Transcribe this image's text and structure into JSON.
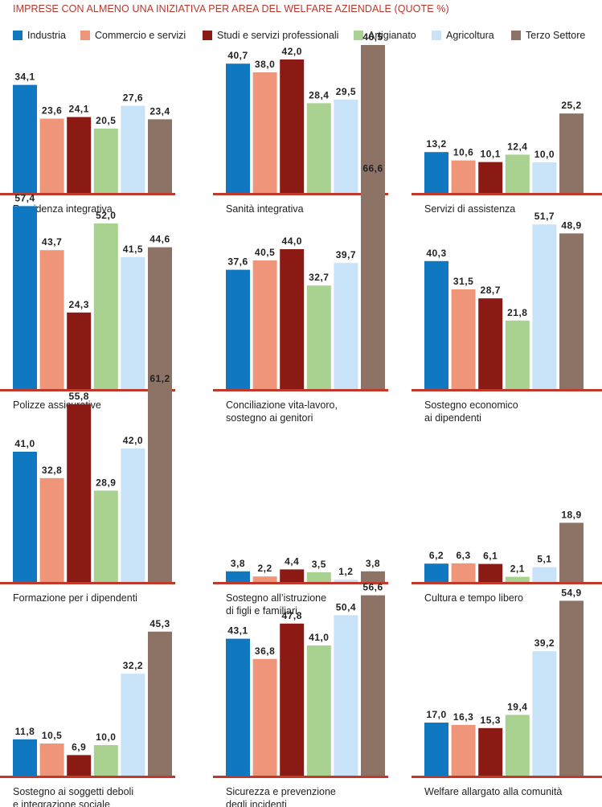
{
  "title": "IMPRESE CON ALMENO UNA INIZIATIVA PER AREA DEL WELFARE AZIENDALE (QUOTE %)",
  "colors": {
    "accent": "#c0392b",
    "baseline": "#c0392b",
    "series": [
      "#0f78c1",
      "#ef957a",
      "#8c1a14",
      "#a9d291",
      "#c8e2f7",
      "#8d7366"
    ]
  },
  "legend": [
    "Industria",
    "Commercio e servizi",
    "Studi e servizi professionali",
    "Artigianato",
    "Agricoltura",
    "Terzo Settore"
  ],
  "chart_data": [
    {
      "type": "bar",
      "title": "Previdenza integrativa",
      "categories": [
        "Industria",
        "Commercio e servizi",
        "Studi e servizi professionali",
        "Artigianato",
        "Agricoltura",
        "Terzo Settore"
      ],
      "values": [
        34.1,
        23.6,
        24.1,
        20.5,
        27.6,
        23.4
      ],
      "labels": [
        "34,1",
        "23,6",
        "24,1",
        "20,5",
        "27,6",
        "23,4"
      ]
    },
    {
      "type": "bar",
      "title": "Sanità integrativa",
      "categories": [
        "Industria",
        "Commercio e servizi",
        "Studi e servizi professionali",
        "Artigianato",
        "Agricoltura",
        "Terzo Settore"
      ],
      "values": [
        40.7,
        38.0,
        42.0,
        28.4,
        29.5,
        46.5
      ],
      "labels": [
        "40,7",
        "38,0",
        "42,0",
        "28,4",
        "29,5",
        "46,5"
      ]
    },
    {
      "type": "bar",
      "title": "Servizi di assistenza",
      "categories": [
        "Industria",
        "Commercio e servizi",
        "Studi e servizi professionali",
        "Artigianato",
        "Agricoltura",
        "Terzo Settore"
      ],
      "values": [
        13.2,
        10.6,
        10.1,
        12.4,
        10.0,
        25.2
      ],
      "labels": [
        "13,2",
        "10,6",
        "10,1",
        "12,4",
        "10,0",
        "25,2"
      ]
    },
    {
      "type": "bar",
      "title": "Polizze assicurative",
      "categories": [
        "Industria",
        "Commercio e servizi",
        "Studi e servizi professionali",
        "Artigianato",
        "Agricoltura",
        "Terzo Settore"
      ],
      "values": [
        57.4,
        43.7,
        24.3,
        52.0,
        41.5,
        44.6
      ],
      "labels": [
        "57,4",
        "43,7",
        "24,3",
        "52,0",
        "41,5",
        "44,6"
      ]
    },
    {
      "type": "bar",
      "title": "Conciliazione vita-lavoro,\nsostegno ai genitori",
      "categories": [
        "Industria",
        "Commercio e servizi",
        "Studi e servizi professionali",
        "Artigianato",
        "Agricoltura",
        "Terzo Settore"
      ],
      "values": [
        37.6,
        40.5,
        44.0,
        32.7,
        39.7,
        66.6
      ],
      "labels": [
        "37,6",
        "40,5",
        "44,0",
        "32,7",
        "39,7",
        "66,6"
      ]
    },
    {
      "type": "bar",
      "title": "Sostegno economico\nai dipendenti",
      "categories": [
        "Industria",
        "Commercio e servizi",
        "Studi e servizi professionali",
        "Artigianato",
        "Agricoltura",
        "Terzo Settore"
      ],
      "values": [
        40.3,
        31.5,
        28.7,
        21.8,
        51.7,
        48.9
      ],
      "labels": [
        "40,3",
        "31,5",
        "28,7",
        "21,8",
        "51,7",
        "48,9"
      ]
    },
    {
      "type": "bar",
      "title": "Formazione per i dipendenti",
      "categories": [
        "Industria",
        "Commercio e servizi",
        "Studi e servizi professionali",
        "Artigianato",
        "Agricoltura",
        "Terzo Settore"
      ],
      "values": [
        41.0,
        32.8,
        55.8,
        28.9,
        42.0,
        61.2
      ],
      "labels": [
        "41,0",
        "32,8",
        "55,8",
        "28,9",
        "42,0",
        "61,2"
      ]
    },
    {
      "type": "bar",
      "title": "Sostegno all’istruzione\ndi figli e familiari",
      "categories": [
        "Industria",
        "Commercio e servizi",
        "Studi e servizi professionali",
        "Artigianato",
        "Agricoltura",
        "Terzo Settore"
      ],
      "values": [
        3.8,
        2.2,
        4.4,
        3.5,
        1.2,
        3.8
      ],
      "labels": [
        "3,8",
        "2,2",
        "4,4",
        "3,5",
        "1,2",
        "3,8"
      ]
    },
    {
      "type": "bar",
      "title": "Cultura e tempo libero",
      "categories": [
        "Industria",
        "Commercio e servizi",
        "Studi e servizi professionali",
        "Artigianato",
        "Agricoltura",
        "Terzo Settore"
      ],
      "values": [
        6.2,
        6.3,
        6.1,
        2.1,
        5.1,
        18.9
      ],
      "labels": [
        "6,2",
        "6,3",
        "6,1",
        "2,1",
        "5,1",
        "18,9"
      ]
    },
    {
      "type": "bar",
      "title": "Sostegno ai soggetti deboli\ne integrazione sociale",
      "categories": [
        "Industria",
        "Commercio e servizi",
        "Studi e servizi professionali",
        "Artigianato",
        "Agricoltura",
        "Terzo Settore"
      ],
      "values": [
        11.8,
        10.5,
        6.9,
        10.0,
        32.2,
        45.3
      ],
      "labels": [
        "11,8",
        "10,5",
        "6,9",
        "10,0",
        "32,2",
        "45,3"
      ]
    },
    {
      "type": "bar",
      "title": "Sicurezza e prevenzione\ndegli incidenti",
      "categories": [
        "Industria",
        "Commercio e servizi",
        "Studi e servizi professionali",
        "Artigianato",
        "Agricoltura",
        "Terzo Settore"
      ],
      "values": [
        43.1,
        36.8,
        47.8,
        41.0,
        50.4,
        56.6
      ],
      "labels": [
        "43,1",
        "36,8",
        "47,8",
        "41,0",
        "50,4",
        "56,6"
      ]
    },
    {
      "type": "bar",
      "title": "Welfare allargato alla comunità",
      "categories": [
        "Industria",
        "Commercio e servizi",
        "Studi e servizi professionali",
        "Artigianato",
        "Agricoltura",
        "Terzo Settore"
      ],
      "values": [
        17.0,
        16.3,
        15.3,
        19.4,
        39.2,
        54.9
      ],
      "labels": [
        "17,0",
        "16,3",
        "15,3",
        "19,4",
        "39,2",
        "54,9"
      ]
    }
  ]
}
